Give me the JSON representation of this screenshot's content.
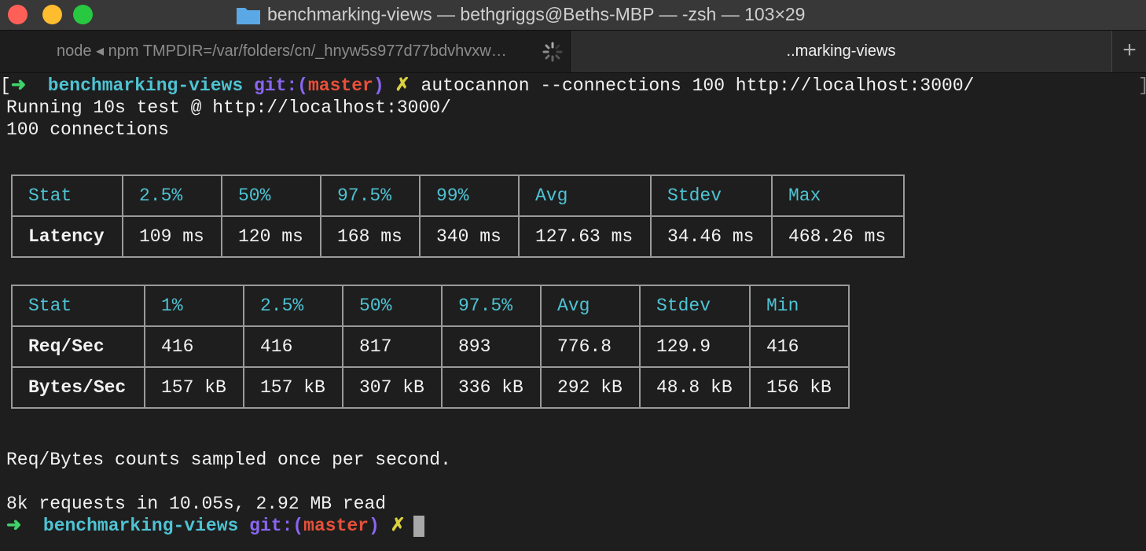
{
  "window": {
    "title": "benchmarking-views — bethgriggs@Beths-MBP — -zsh — 103×29"
  },
  "tabs": [
    "node ◂ npm TMPDIR=/var/folders/cn/_hnyw5s977d77bdvhvxw…",
    "..marking-views"
  ],
  "prompt1": {
    "open": "[",
    "arrow": "➜",
    "dir": "benchmarking-views",
    "git": "git:(",
    "branch": "master",
    "close": ")",
    "dirty": "✗",
    "command": "autocannon --connections 100 http://localhost:3000/",
    "end": "]"
  },
  "lines": [
    "Running 10s test @ http://localhost:3000/",
    "100 connections"
  ],
  "latency_table": {
    "header": [
      "Stat",
      "2.5%",
      "50%",
      "97.5%",
      "99%",
      "Avg",
      "Stdev",
      "Max"
    ],
    "rows": [
      [
        "Latency",
        "109 ms",
        "120 ms",
        "168 ms",
        "340 ms",
        "127.63 ms",
        "34.46 ms",
        "468.26 ms"
      ]
    ]
  },
  "throughput_table": {
    "header": [
      "Stat",
      "1%",
      "2.5%",
      "50%",
      "97.5%",
      "Avg",
      "Stdev",
      "Min"
    ],
    "rows": [
      [
        "Req/Sec",
        "416",
        "416",
        "817",
        "893",
        "776.8",
        "129.9",
        "416"
      ],
      [
        "Bytes/Sec",
        "157 kB",
        "157 kB",
        "307 kB",
        "336 kB",
        "292 kB",
        "48.8 kB",
        "156 kB"
      ]
    ]
  },
  "notes": [
    "Req/Bytes counts sampled once per second.",
    "8k requests in 10.05s, 2.92 MB read"
  ],
  "prompt2": {
    "arrow": "➜",
    "dir": "benchmarking-views",
    "git": "git:(",
    "branch": "master",
    "close": ")",
    "dirty": "✗"
  }
}
